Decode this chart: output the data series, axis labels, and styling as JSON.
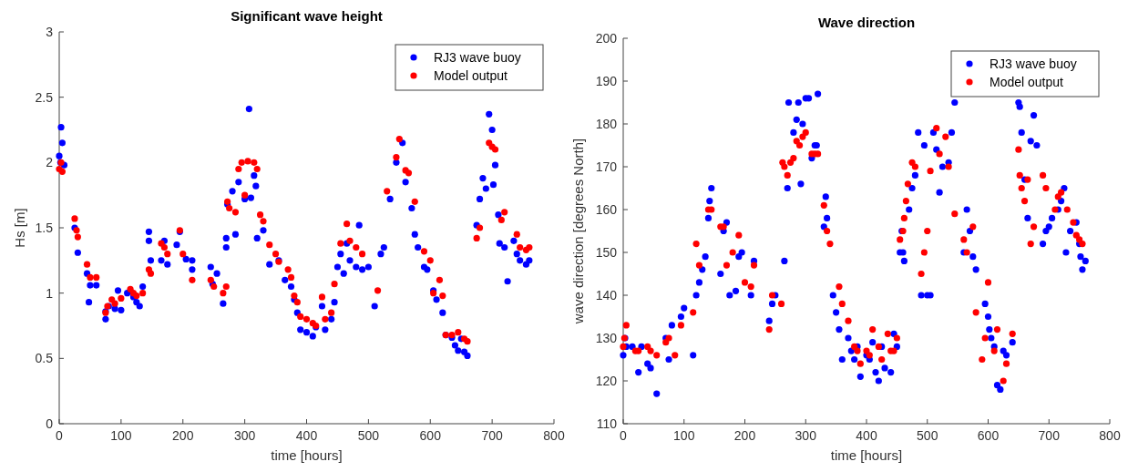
{
  "chart_data": [
    {
      "type": "scatter",
      "title": "Significant wave height",
      "xlabel": "time [hours]",
      "ylabel": "Hs [m]",
      "xlim": [
        0,
        800
      ],
      "xticks": [
        0,
        100,
        200,
        300,
        400,
        500,
        600,
        700,
        800
      ],
      "ylim": [
        0,
        3
      ],
      "yticks": [
        0,
        0.5,
        1,
        1.5,
        2,
        2.5,
        3
      ],
      "legend": "top right",
      "marker": "circle",
      "series": [
        {
          "name": "RJ3 wave buoy",
          "color": "#0000ff",
          "x": [
            0,
            3,
            5,
            2,
            8,
            25,
            30,
            45,
            48,
            50,
            60,
            75,
            75,
            80,
            90,
            95,
            100,
            110,
            120,
            125,
            130,
            135,
            145,
            145,
            148,
            165,
            170,
            175,
            190,
            195,
            205,
            215,
            215,
            245,
            248,
            255,
            265,
            270,
            270,
            272,
            280,
            285,
            290,
            300,
            307,
            310,
            315,
            318,
            320,
            330,
            340,
            355,
            365,
            375,
            380,
            385,
            390,
            400,
            410,
            415,
            425,
            430,
            440,
            445,
            450,
            455,
            460,
            465,
            470,
            480,
            485,
            490,
            500,
            510,
            520,
            525,
            535,
            545,
            555,
            560,
            570,
            575,
            580,
            590,
            595,
            605,
            610,
            620,
            625,
            635,
            640,
            645,
            650,
            655,
            660,
            675,
            680,
            685,
            690,
            695,
            700,
            702,
            705,
            710,
            712,
            720,
            725,
            735,
            740,
            745,
            755,
            760
          ],
          "values": [
            2.05,
            2.27,
            2.15,
            2.0,
            1.98,
            1.5,
            1.31,
            1.15,
            0.93,
            1.06,
            1.06,
            0.86,
            0.8,
            0.9,
            0.88,
            1.02,
            0.87,
            1.0,
            0.97,
            0.93,
            0.9,
            1.05,
            1.47,
            1.4,
            1.25,
            1.25,
            1.4,
            1.22,
            1.37,
            1.47,
            1.26,
            1.25,
            1.18,
            1.2,
            1.07,
            1.15,
            0.92,
            1.42,
            1.35,
            1.68,
            1.78,
            1.45,
            1.85,
            1.72,
            2.41,
            1.73,
            1.9,
            1.82,
            1.42,
            1.48,
            1.22,
            1.25,
            1.1,
            1.05,
            0.95,
            0.85,
            0.72,
            0.7,
            0.67,
            0.74,
            0.9,
            0.72,
            0.8,
            0.93,
            1.2,
            1.3,
            1.15,
            1.38,
            1.25,
            1.2,
            1.52,
            1.18,
            1.2,
            0.9,
            1.3,
            1.35,
            1.72,
            2.0,
            2.15,
            1.85,
            1.65,
            1.45,
            1.35,
            1.2,
            1.18,
            1.02,
            0.95,
            0.85,
            0.68,
            0.66,
            0.6,
            0.56,
            0.65,
            0.55,
            0.52,
            1.52,
            1.72,
            1.88,
            1.8,
            2.37,
            2.25,
            1.83,
            1.98,
            1.6,
            1.38,
            1.35,
            1.09,
            1.4,
            1.3,
            1.25,
            1.22,
            1.25
          ]
        },
        {
          "name": "Model output",
          "color": "#ff0000",
          "x": [
            0,
            3,
            5,
            25,
            28,
            30,
            45,
            50,
            60,
            75,
            78,
            85,
            90,
            100,
            115,
            120,
            125,
            135,
            145,
            148,
            165,
            170,
            175,
            195,
            200,
            215,
            245,
            250,
            265,
            270,
            272,
            275,
            285,
            290,
            295,
            300,
            305,
            315,
            320,
            325,
            330,
            340,
            350,
            355,
            370,
            375,
            380,
            385,
            390,
            400,
            410,
            415,
            425,
            430,
            440,
            445,
            455,
            465,
            470,
            480,
            490,
            515,
            530,
            545,
            550,
            560,
            565,
            575,
            590,
            600,
            605,
            615,
            620,
            625,
            635,
            645,
            655,
            660,
            675,
            680,
            695,
            700,
            705,
            715,
            720,
            740,
            745,
            755,
            760
          ],
          "values": [
            1.95,
            2.0,
            1.93,
            1.57,
            1.48,
            1.43,
            1.22,
            1.12,
            1.12,
            0.85,
            0.9,
            0.95,
            0.92,
            0.96,
            1.03,
            1.0,
            0.98,
            1.0,
            1.18,
            1.15,
            1.38,
            1.35,
            1.3,
            1.48,
            1.3,
            1.1,
            1.1,
            1.05,
            1.0,
            1.05,
            1.7,
            1.65,
            1.62,
            1.95,
            2.0,
            1.75,
            2.01,
            2.0,
            1.95,
            1.6,
            1.55,
            1.37,
            1.3,
            1.24,
            1.18,
            1.12,
            0.98,
            0.93,
            0.82,
            0.8,
            0.77,
            0.75,
            0.97,
            0.8,
            0.85,
            1.07,
            1.38,
            1.53,
            1.4,
            1.35,
            1.3,
            1.02,
            1.78,
            2.04,
            2.18,
            1.94,
            1.92,
            1.7,
            1.32,
            1.25,
            1.0,
            1.1,
            0.98,
            0.68,
            0.68,
            0.7,
            0.65,
            0.63,
            1.42,
            1.5,
            2.15,
            2.12,
            2.1,
            1.56,
            1.62,
            1.45,
            1.35,
            1.33,
            1.35
          ]
        }
      ]
    },
    {
      "type": "scatter",
      "title": "Wave direction",
      "xlabel": "time [hours]",
      "ylabel": "wave direction [degrees North]",
      "xlim": [
        0,
        800
      ],
      "xticks": [
        0,
        100,
        200,
        300,
        400,
        500,
        600,
        700,
        800
      ],
      "ylim": [
        110,
        200
      ],
      "yticks": [
        110,
        120,
        130,
        140,
        150,
        160,
        170,
        180,
        190,
        200
      ],
      "legend": "top right",
      "marker": "circle",
      "series": [
        {
          "name": "RJ3 wave buoy",
          "color": "#0000ff",
          "x": [
            0,
            3,
            5,
            15,
            25,
            30,
            40,
            45,
            55,
            70,
            75,
            80,
            95,
            100,
            115,
            120,
            125,
            130,
            135,
            140,
            142,
            145,
            160,
            165,
            170,
            175,
            185,
            190,
            195,
            210,
            215,
            240,
            245,
            250,
            265,
            270,
            272,
            280,
            285,
            288,
            292,
            295,
            300,
            305,
            310,
            315,
            320,
            318,
            330,
            333,
            335,
            345,
            350,
            355,
            360,
            370,
            375,
            380,
            385,
            390,
            400,
            405,
            410,
            415,
            420,
            425,
            430,
            440,
            445,
            450,
            455,
            458,
            460,
            462,
            470,
            475,
            480,
            485,
            490,
            495,
            500,
            505,
            510,
            515,
            520,
            525,
            535,
            540,
            545,
            560,
            565,
            570,
            575,
            580,
            595,
            600,
            602,
            605,
            610,
            615,
            620,
            625,
            630,
            640,
            650,
            652,
            655,
            660,
            665,
            670,
            675,
            680,
            690,
            695,
            700,
            705,
            715,
            720,
            725,
            728,
            735,
            745,
            750,
            752,
            755,
            760
          ],
          "values": [
            126,
            130,
            128,
            128,
            122,
            128,
            124,
            123,
            117,
            130,
            125,
            133,
            135,
            137,
            126,
            140,
            143,
            146,
            149,
            158,
            162,
            165,
            145,
            155,
            157,
            140,
            141,
            149,
            150,
            140,
            148,
            134,
            138,
            140,
            148,
            165,
            185,
            178,
            181,
            185,
            166,
            180,
            186,
            186,
            172,
            175,
            187,
            175,
            156,
            163,
            158,
            140,
            136,
            132,
            125,
            130,
            127,
            125,
            128,
            121,
            126,
            125,
            129,
            122,
            120,
            128,
            123,
            122,
            131,
            128,
            150,
            155,
            150,
            148,
            160,
            165,
            168,
            178,
            140,
            175,
            140,
            140,
            178,
            174,
            164,
            170,
            171,
            178,
            185,
            150,
            160,
            155,
            149,
            146,
            138,
            135,
            132,
            130,
            128,
            119,
            118,
            127,
            126,
            129,
            185,
            184,
            178,
            167,
            158,
            176,
            182,
            175,
            152,
            155,
            156,
            158,
            160,
            162,
            165,
            150,
            155,
            157,
            152,
            149,
            146,
            148
          ]
        },
        {
          "name": "Model output",
          "color": "#ff0000",
          "x": [
            0,
            2,
            5,
            20,
            25,
            40,
            45,
            55,
            70,
            75,
            85,
            95,
            115,
            120,
            125,
            140,
            145,
            160,
            165,
            170,
            180,
            190,
            200,
            210,
            215,
            240,
            245,
            260,
            262,
            265,
            270,
            275,
            280,
            285,
            290,
            295,
            300,
            310,
            315,
            320,
            330,
            335,
            340,
            355,
            360,
            370,
            380,
            385,
            390,
            400,
            405,
            410,
            420,
            425,
            435,
            440,
            445,
            450,
            455,
            460,
            462,
            465,
            468,
            475,
            480,
            490,
            495,
            500,
            505,
            515,
            520,
            530,
            535,
            545,
            560,
            565,
            575,
            580,
            590,
            595,
            600,
            610,
            615,
            625,
            630,
            640,
            650,
            652,
            655,
            660,
            665,
            670,
            675,
            690,
            695,
            710,
            715,
            720,
            730,
            740,
            745,
            750,
            755
          ],
          "values": [
            128,
            130,
            133,
            127,
            127,
            128,
            127,
            126,
            129,
            130,
            126,
            133,
            136,
            152,
            147,
            160,
            160,
            156,
            156,
            147,
            150,
            154,
            143,
            142,
            147,
            132,
            140,
            138,
            171,
            170,
            168,
            171,
            172,
            176,
            175,
            177,
            178,
            173,
            173,
            173,
            161,
            155,
            152,
            142,
            138,
            134,
            128,
            127,
            124,
            127,
            126,
            132,
            128,
            125,
            131,
            127,
            127,
            130,
            153,
            155,
            158,
            162,
            166,
            171,
            170,
            145,
            150,
            155,
            169,
            179,
            173,
            177,
            170,
            159,
            153,
            150,
            156,
            136,
            125,
            130,
            143,
            127,
            132,
            120,
            124,
            131,
            174,
            168,
            165,
            162,
            167,
            152,
            156,
            168,
            165,
            160,
            163,
            164,
            160,
            157,
            154,
            153,
            152
          ]
        }
      ]
    }
  ]
}
